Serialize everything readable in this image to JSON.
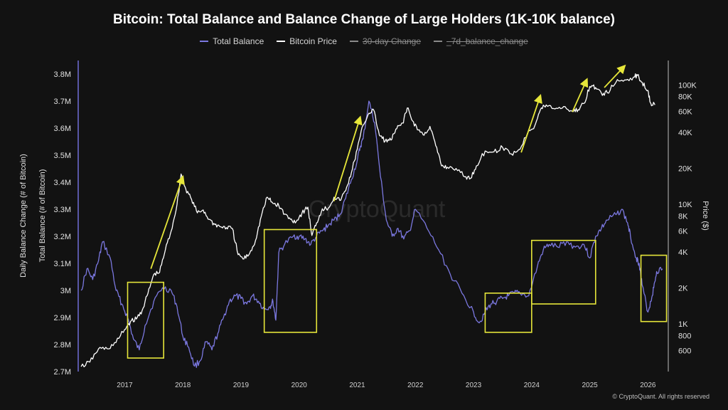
{
  "chart_data": {
    "type": "line",
    "title": "Bitcoin: Total Balance and Balance Change of Large Holders (1K-10K balance)",
    "legend": [
      {
        "name": "Total Balance",
        "color": "#7b78e0",
        "hidden": false
      },
      {
        "name": "Bitcoin Price",
        "color": "#ffffff",
        "hidden": false
      },
      {
        "name": "30-day Change",
        "color": "#8a8a8a",
        "hidden": true
      },
      {
        "name": "_7d_balance_change",
        "color": "#8a8a8a",
        "hidden": true
      }
    ],
    "legend_position": "top-center",
    "ylabel_left_outer": "Daily Balance Change (# of Bitcoin)",
    "ylabel_left": "Total Balance (# of Bitcoin)",
    "ylabel_right": "Price ($)",
    "x_ticks": [
      "2017",
      "2018",
      "2019",
      "2020",
      "2021",
      "2022",
      "2023",
      "2024",
      "2025",
      "2026"
    ],
    "x_range": [
      2016.2,
      2026.35
    ],
    "y_left_range": [
      2700000,
      3850000
    ],
    "y_left_ticks": [
      {
        "value": 2700000,
        "label": "2.7M"
      },
      {
        "value": 2800000,
        "label": "2.8M"
      },
      {
        "value": 2900000,
        "label": "2.9M"
      },
      {
        "value": 3000000,
        "label": "3M"
      },
      {
        "value": 3100000,
        "label": "3.1M"
      },
      {
        "value": 3200000,
        "label": "3.2M"
      },
      {
        "value": 3300000,
        "label": "3.3M"
      },
      {
        "value": 3400000,
        "label": "3.4M"
      },
      {
        "value": 3500000,
        "label": "3.5M"
      },
      {
        "value": 3600000,
        "label": "3.6M"
      },
      {
        "value": 3700000,
        "label": "3.7M"
      },
      {
        "value": 3800000,
        "label": "3.8M"
      }
    ],
    "y_right_scale": "log",
    "y_right_range": [
      400,
      160000
    ],
    "y_right_ticks": [
      {
        "value": 600,
        "label": "600"
      },
      {
        "value": 800,
        "label": "800"
      },
      {
        "value": 1000,
        "label": "1K"
      },
      {
        "value": 2000,
        "label": "2K"
      },
      {
        "value": 4000,
        "label": "4K"
      },
      {
        "value": 6000,
        "label": "6K"
      },
      {
        "value": 8000,
        "label": "8K"
      },
      {
        "value": 10000,
        "label": "10K"
      },
      {
        "value": 20000,
        "label": "20K"
      },
      {
        "value": 40000,
        "label": "40K"
      },
      {
        "value": 60000,
        "label": "60K"
      },
      {
        "value": 80000,
        "label": "80K"
      },
      {
        "value": 100000,
        "label": "100K"
      }
    ],
    "series": [
      {
        "name": "Total Balance",
        "axis": "left",
        "color": "#7b78e0",
        "x": [
          2016.25,
          2016.35,
          2016.45,
          2016.55,
          2016.62,
          2016.75,
          2016.85,
          2016.95,
          2017.05,
          2017.15,
          2017.25,
          2017.35,
          2017.5,
          2017.65,
          2017.8,
          2017.9,
          2018.0,
          2018.1,
          2018.2,
          2018.3,
          2018.4,
          2018.5,
          2018.6,
          2018.7,
          2018.8,
          2018.9,
          2019.0,
          2019.1,
          2019.2,
          2019.3,
          2019.4,
          2019.5,
          2019.55,
          2019.6,
          2019.65,
          2019.75,
          2019.9,
          2020.0,
          2020.1,
          2020.2,
          2020.3,
          2020.4,
          2020.5,
          2020.6,
          2020.7,
          2020.8,
          2020.9,
          2021.0,
          2021.05,
          2021.1,
          2021.2,
          2021.3,
          2021.4,
          2021.5,
          2021.6,
          2021.7,
          2021.8,
          2021.9,
          2022.0,
          2022.2,
          2022.4,
          2022.6,
          2022.8,
          2023.0,
          2023.1,
          2023.2,
          2023.3,
          2023.4,
          2023.5,
          2023.6,
          2023.7,
          2023.8,
          2023.95,
          2024.1,
          2024.2,
          2024.3,
          2024.45,
          2024.6,
          2024.75,
          2024.9,
          2025.0,
          2025.1,
          2025.2,
          2025.3,
          2025.45,
          2025.55,
          2025.65,
          2025.7,
          2025.8,
          2025.85,
          2025.9,
          2026.0,
          2026.05,
          2026.1,
          2026.15,
          2026.25
        ],
        "y": [
          3000000,
          3080000,
          3040000,
          3110000,
          3180000,
          3120000,
          3000000,
          2950000,
          2900000,
          2820000,
          2780000,
          2870000,
          2960000,
          3010000,
          3000000,
          2940000,
          2830000,
          2790000,
          2720000,
          2740000,
          2810000,
          2780000,
          2840000,
          2900000,
          2960000,
          2980000,
          2970000,
          2950000,
          2980000,
          2960000,
          2930000,
          2940000,
          2960000,
          2890000,
          3140000,
          3170000,
          3200000,
          3200000,
          3190000,
          3170000,
          3200000,
          3220000,
          3240000,
          3260000,
          3280000,
          3340000,
          3410000,
          3480000,
          3530000,
          3560000,
          3700000,
          3620000,
          3420000,
          3260000,
          3200000,
          3230000,
          3190000,
          3220000,
          3300000,
          3230000,
          3150000,
          3060000,
          2990000,
          2920000,
          2880000,
          2920000,
          2950000,
          2960000,
          2970000,
          2980000,
          2990000,
          2990000,
          2980000,
          3090000,
          3150000,
          3170000,
          3160000,
          3180000,
          3160000,
          3170000,
          3120000,
          3200000,
          3230000,
          3260000,
          3280000,
          3300000,
          3250000,
          3200000,
          3120000,
          3100000,
          3020000,
          2920000,
          2960000,
          3010000,
          3070000,
          3080000
        ]
      },
      {
        "name": "Bitcoin Price",
        "axis": "right",
        "color": "#ffffff",
        "x": [
          2016.25,
          2016.4,
          2016.55,
          2016.7,
          2016.85,
          2017.0,
          2017.1,
          2017.2,
          2017.3,
          2017.4,
          2017.5,
          2017.6,
          2017.7,
          2017.8,
          2017.9,
          2017.97,
          2018.05,
          2018.15,
          2018.25,
          2018.35,
          2018.45,
          2018.55,
          2018.65,
          2018.75,
          2018.85,
          2018.95,
          2019.05,
          2019.15,
          2019.25,
          2019.35,
          2019.45,
          2019.55,
          2019.65,
          2019.75,
          2019.85,
          2019.95,
          2020.05,
          2020.15,
          2020.22,
          2020.3,
          2020.4,
          2020.5,
          2020.6,
          2020.7,
          2020.8,
          2020.9,
          2021.0,
          2021.1,
          2021.2,
          2021.28,
          2021.38,
          2021.48,
          2021.58,
          2021.68,
          2021.78,
          2021.86,
          2021.95,
          2022.05,
          2022.15,
          2022.25,
          2022.35,
          2022.45,
          2022.55,
          2022.7,
          2022.85,
          2022.95,
          2023.05,
          2023.2,
          2023.35,
          2023.5,
          2023.65,
          2023.8,
          2023.95,
          2024.05,
          2024.15,
          2024.25,
          2024.4,
          2024.55,
          2024.7,
          2024.8,
          2024.9,
          2025.0,
          2025.1,
          2025.2,
          2025.3,
          2025.45,
          2025.6,
          2025.75,
          2025.82,
          2025.9,
          2026.0,
          2026.05,
          2026.12
        ],
        "y": [
          440,
          480,
          620,
          620,
          700,
          900,
          1050,
          1100,
          1300,
          1800,
          2600,
          2700,
          4200,
          6000,
          10000,
          18000,
          13500,
          11000,
          8500,
          9000,
          7500,
          6800,
          6500,
          6400,
          6300,
          3800,
          3500,
          3900,
          5000,
          8000,
          11500,
          10200,
          9800,
          8300,
          7500,
          7200,
          8500,
          9500,
          5500,
          7000,
          9200,
          9300,
          11500,
          10800,
          13000,
          18500,
          29000,
          46000,
          58000,
          62000,
          38000,
          34000,
          34500,
          43000,
          48000,
          64000,
          50000,
          42000,
          38000,
          45000,
          31000,
          21000,
          20500,
          20000,
          17000,
          16600,
          21000,
          28000,
          27500,
          30000,
          26500,
          29000,
          42000,
          45000,
          62000,
          68000,
          63000,
          66000,
          60000,
          62000,
          70000,
          97000,
          95000,
          85000,
          86000,
          105000,
          110000,
          116000,
          120000,
          105000,
          90000,
          70000,
          68000
        ]
      }
    ],
    "annotations": {
      "boxes": [
        {
          "x0": 2017.05,
          "x1": 2017.67,
          "y0": 2750000,
          "y1": 3030000,
          "color": "#e6e63a"
        },
        {
          "x0": 2019.4,
          "x1": 2020.3,
          "y0": 2845000,
          "y1": 3225000,
          "color": "#e6e63a"
        },
        {
          "x0": 2023.2,
          "x1": 2024.0,
          "y0": 2845000,
          "y1": 2990000,
          "color": "#e6e63a"
        },
        {
          "x0": 2024.0,
          "x1": 2025.1,
          "y0": 2950000,
          "y1": 3185000,
          "color": "#e6e63a"
        },
        {
          "x0": 2025.88,
          "x1": 2026.32,
          "y0": 2885000,
          "y1": 3130000,
          "color": "#e6e63a"
        }
      ],
      "arrows": [
        {
          "x0": 2017.45,
          "y0": 3080000,
          "x1": 2018.0,
          "y1": 3420000
        },
        {
          "x0": 2020.6,
          "y0": 3330000,
          "x1": 2021.05,
          "y1": 3640000
        },
        {
          "x0": 2023.82,
          "y0": 3510000,
          "x1": 2024.15,
          "y1": 3720000
        },
        {
          "x0": 2024.7,
          "y0": 3660000,
          "x1": 2024.95,
          "y1": 3780000
        },
        {
          "x0": 2025.25,
          "y0": 3750000,
          "x1": 2025.6,
          "y1": 3830000
        }
      ]
    },
    "grid": false,
    "watermark": "CryptoQuant"
  },
  "credit": "© CryptoQuant. All rights reserved"
}
